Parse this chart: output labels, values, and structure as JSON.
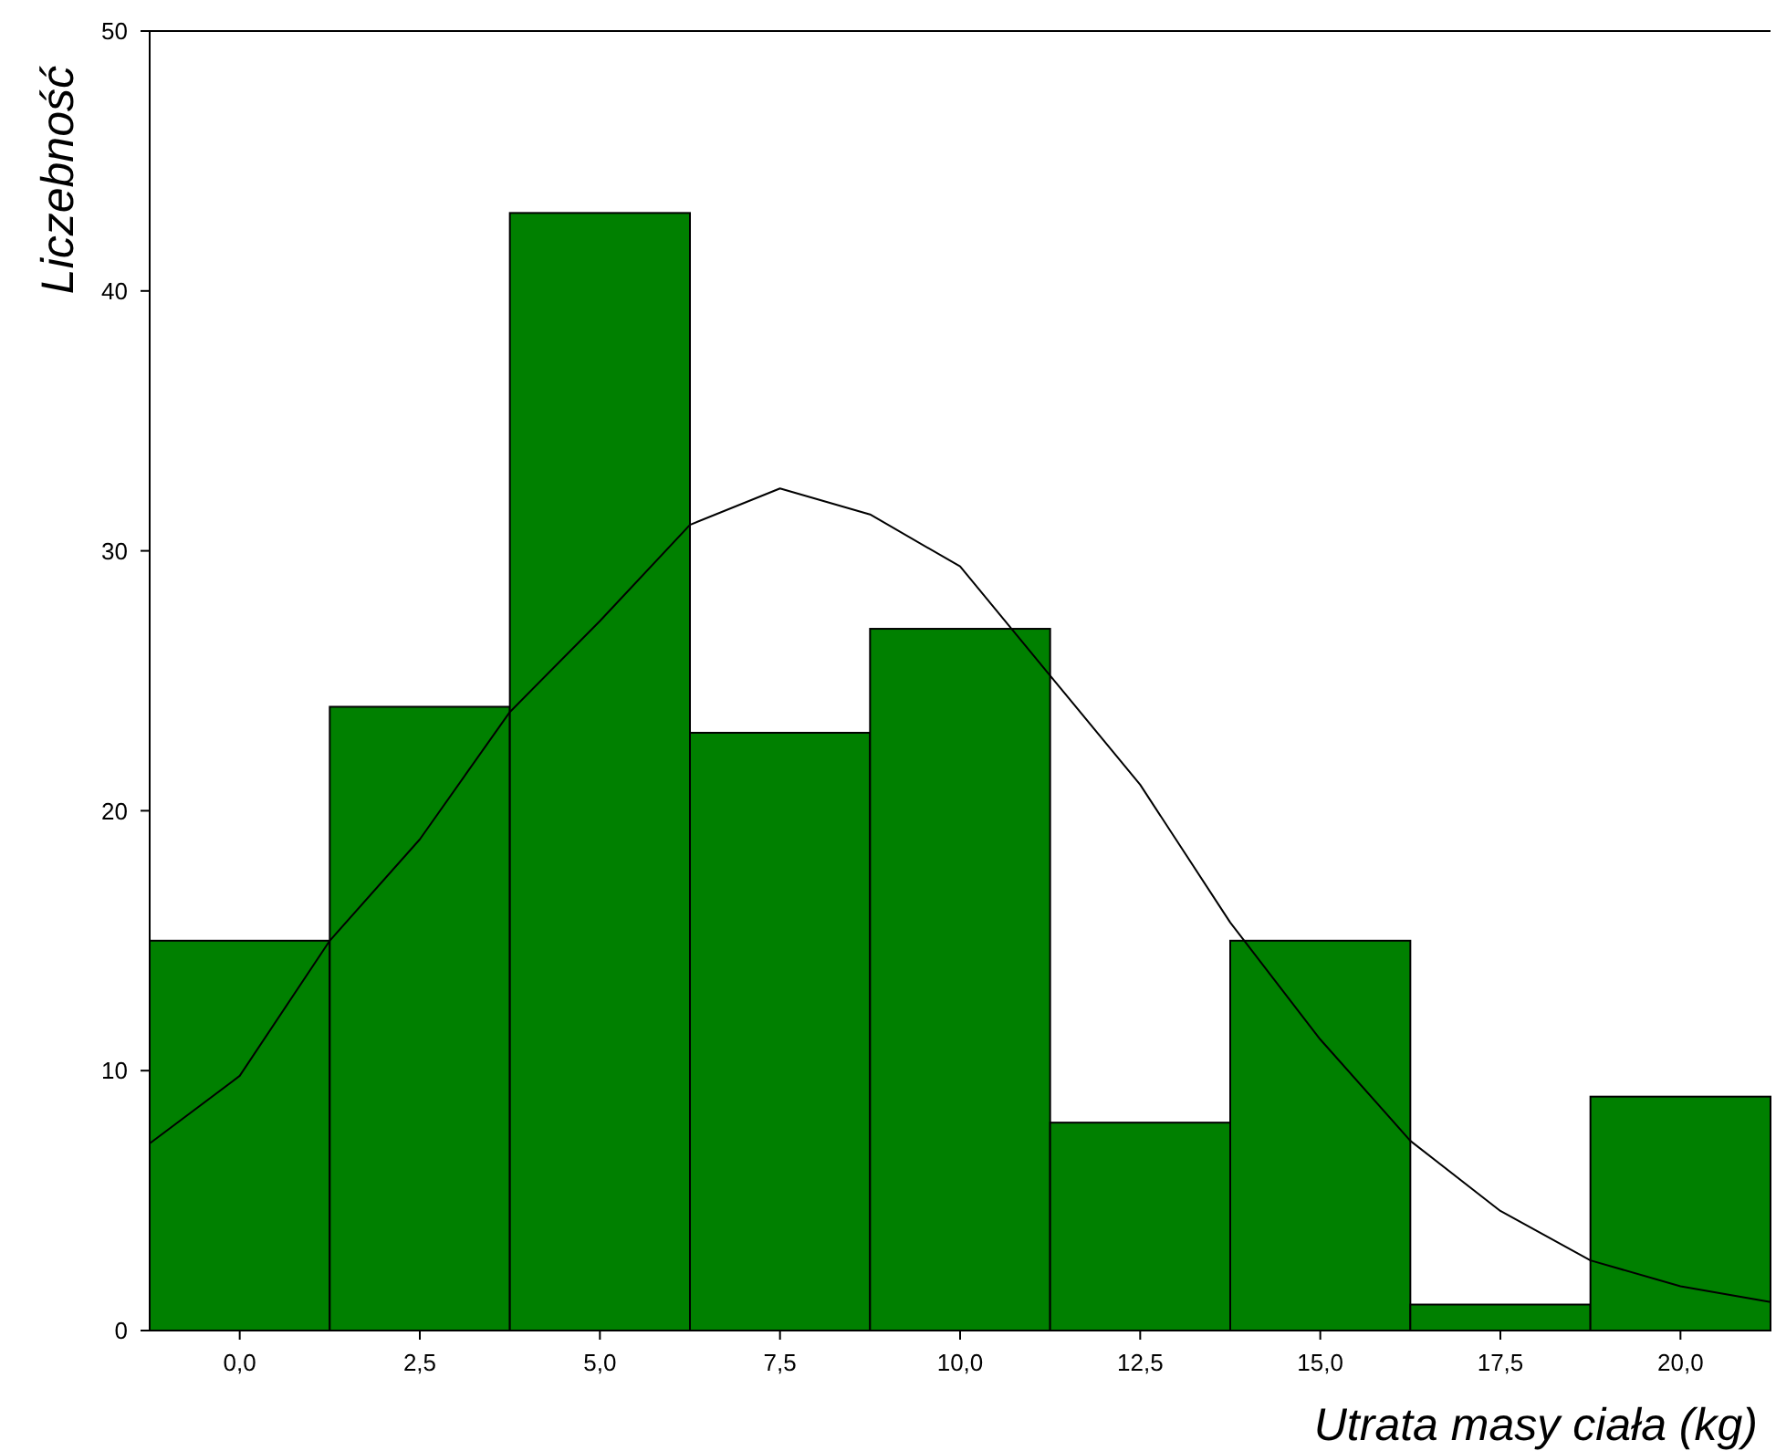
{
  "chart_data": {
    "type": "histogram",
    "xlabel": "Utrata masy ciała (kg)",
    "ylabel": "Liczebność",
    "bins": [
      -1.25,
      1.25,
      3.75,
      6.25,
      8.75,
      11.25,
      13.75,
      16.25,
      18.75,
      21.25
    ],
    "values": [
      15,
      24,
      43,
      23,
      27,
      8,
      15,
      1,
      9
    ],
    "color": "#008000",
    "series": [
      {
        "type": "line",
        "color": "#000000",
        "x": [
          -1.25,
          0,
          1.25,
          2.5,
          3.75,
          5,
          6.25,
          7.5,
          8.75,
          10,
          11.25,
          12.5,
          13.75,
          15,
          16.25,
          17.5,
          18.75,
          20,
          21.25
        ],
        "values": [
          7.2,
          9.8,
          15.0,
          18.9,
          23.8,
          27.3,
          31.0,
          32.4,
          31.4,
          29.4,
          25.2,
          21.0,
          15.7,
          11.2,
          7.3,
          4.6,
          2.7,
          1.7,
          1.1
        ]
      }
    ],
    "xlim": [
      -1.25,
      21.25
    ],
    "ylim": [
      0,
      50
    ],
    "xticks": [
      {
        "value": 0,
        "label": "0,0"
      },
      {
        "value": 2.5,
        "label": "2,5"
      },
      {
        "value": 5,
        "label": "5,0"
      },
      {
        "value": 7.5,
        "label": "7,5"
      },
      {
        "value": 10,
        "label": "10,0"
      },
      {
        "value": 12.5,
        "label": "12,5"
      },
      {
        "value": 15,
        "label": "15,0"
      },
      {
        "value": 17.5,
        "label": "17,5"
      },
      {
        "value": 20,
        "label": "20,0"
      }
    ],
    "yticks": [
      0,
      10,
      20,
      30,
      40,
      50
    ]
  }
}
